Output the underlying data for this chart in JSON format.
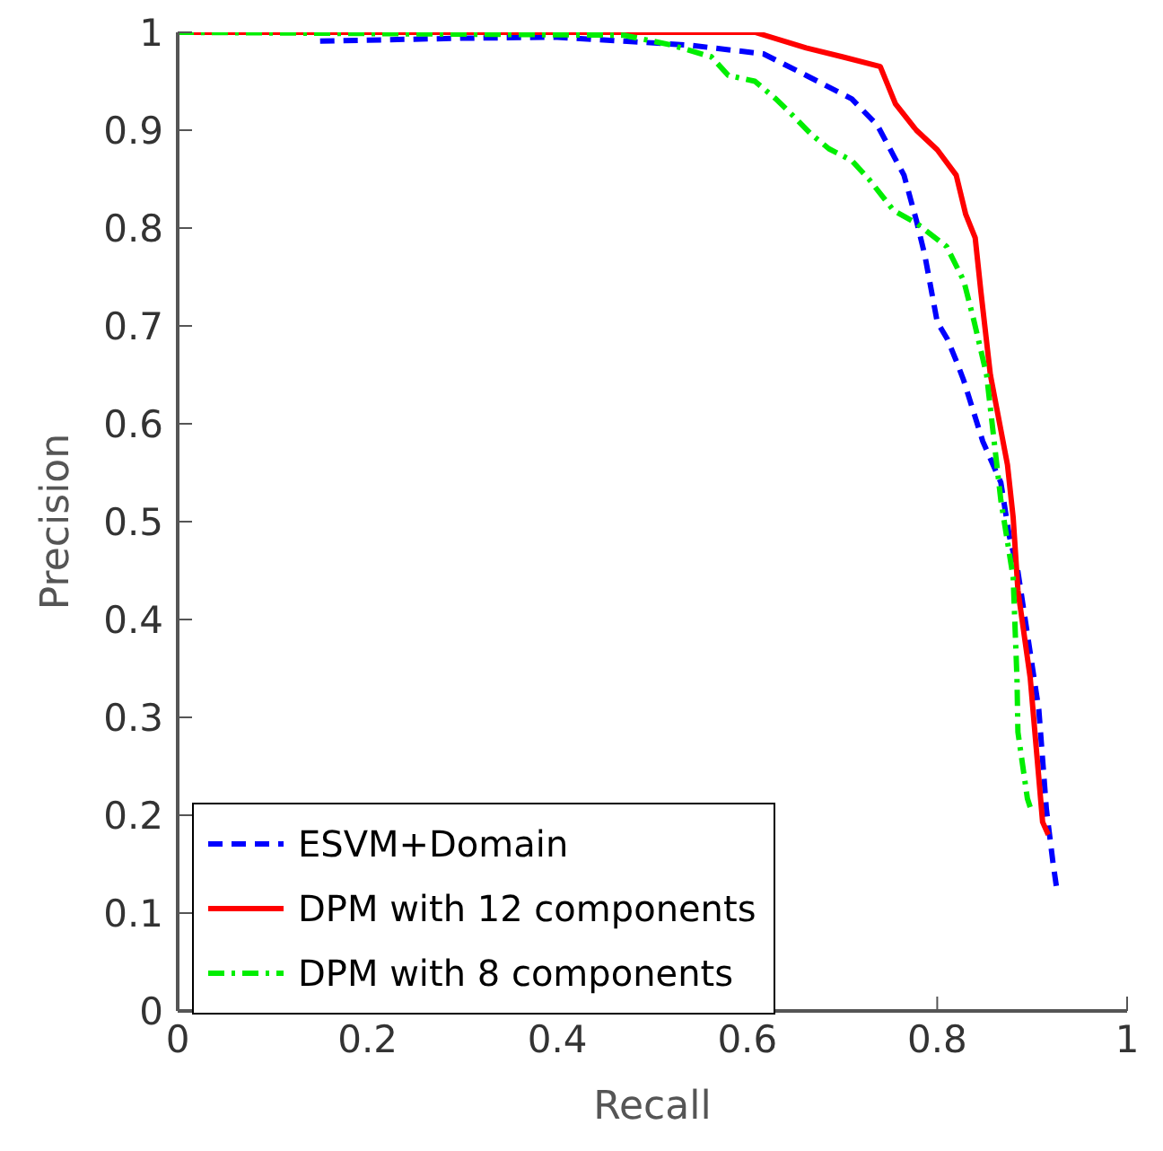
{
  "chart_data": {
    "type": "line",
    "xlabel": "Recall",
    "ylabel": "Precision",
    "xlim": [
      0,
      1
    ],
    "xticks": [
      0,
      0.2,
      0.4,
      0.6,
      0.8,
      1
    ],
    "ylim": [
      0,
      1
    ],
    "yticks": [
      0,
      0.1,
      0.2,
      0.3,
      0.4,
      0.5,
      0.6,
      0.7,
      0.8,
      0.9,
      1
    ],
    "grid": false,
    "legend": "bottom left",
    "marker": "none",
    "series": [
      {
        "name": "ESVM+Domain",
        "color": "#0000ff",
        "line_style": "dashed",
        "x": [
          0.15,
          0.3,
          0.4,
          0.538,
          0.617,
          0.662,
          0.71,
          0.737,
          0.765,
          0.778,
          0.787,
          0.8,
          0.811,
          0.821,
          0.828,
          0.848,
          0.867,
          0.876,
          0.885,
          0.902,
          0.907,
          0.915,
          0.922,
          0.926
        ],
        "values": [
          0.991,
          0.994,
          0.995,
          0.987,
          0.978,
          0.956,
          0.932,
          0.905,
          0.854,
          0.808,
          0.772,
          0.704,
          0.686,
          0.662,
          0.644,
          0.582,
          0.54,
          0.485,
          0.449,
          0.34,
          0.308,
          0.206,
          0.151,
          0.124
        ]
      },
      {
        "name": "DPM with 12 components",
        "color": "#ff0000",
        "line_style": "solid",
        "x": [
          0,
          0.608,
          0.662,
          0.7,
          0.74,
          0.756,
          0.778,
          0.8,
          0.82,
          0.83,
          0.84,
          0.846,
          0.856,
          0.874,
          0.88,
          0.885,
          0.898,
          0.911,
          0.917
        ],
        "values": [
          1,
          1,
          0.984,
          0.975,
          0.965,
          0.927,
          0.9,
          0.88,
          0.854,
          0.814,
          0.79,
          0.735,
          0.65,
          0.558,
          0.504,
          0.43,
          0.34,
          0.193,
          0.18
        ]
      },
      {
        "name": "DPM with 8 components",
        "color": "#00ee00",
        "line_style": "dashdot",
        "x": [
          0,
          0.47,
          0.52,
          0.562,
          0.58,
          0.608,
          0.63,
          0.649,
          0.667,
          0.686,
          0.71,
          0.728,
          0.754,
          0.778,
          0.81,
          0.828,
          0.839,
          0.852,
          0.867,
          0.88,
          0.884,
          0.885,
          0.895,
          0.898
        ],
        "values": [
          1,
          0.997,
          0.987,
          0.975,
          0.956,
          0.95,
          0.932,
          0.914,
          0.896,
          0.881,
          0.869,
          0.85,
          0.818,
          0.805,
          0.781,
          0.746,
          0.704,
          0.65,
          0.522,
          0.443,
          0.34,
          0.285,
          0.217,
          0.208
        ]
      }
    ]
  }
}
